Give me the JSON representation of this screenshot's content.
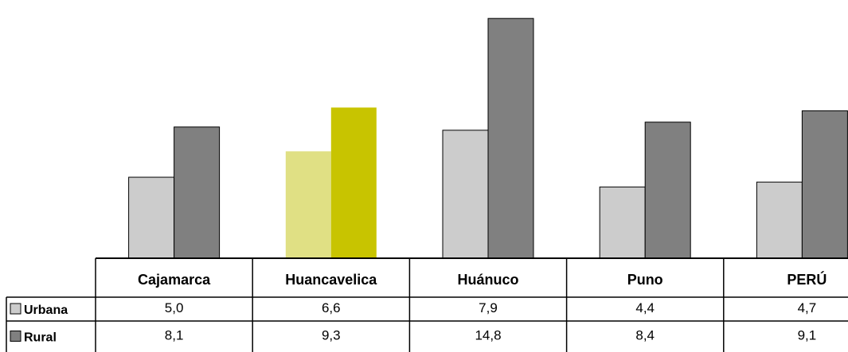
{
  "chart_data": {
    "type": "bar",
    "categories": [
      "Cajamarca",
      "Huancavelica",
      "Huánuco",
      "Puno",
      "PERÚ"
    ],
    "series": [
      {
        "name": "Urbana",
        "values": [
          5.0,
          6.6,
          7.9,
          4.4,
          4.7
        ],
        "labels": [
          "5,0",
          "6,6",
          "7,9",
          "4,4",
          "4,7"
        ],
        "color": "#cccccc"
      },
      {
        "name": "Rural",
        "values": [
          8.1,
          9.3,
          14.8,
          8.4,
          9.1
        ],
        "labels": [
          "8,1",
          "9,3",
          "14,8",
          "8,4",
          "9,1"
        ],
        "color": "#808080"
      }
    ],
    "highlight": {
      "category": "Huancavelica",
      "colors": [
        "#e0e084",
        "#c8c400"
      ]
    },
    "ylim": [
      0,
      15.3
    ],
    "grid": false,
    "legend": "data table, left"
  }
}
